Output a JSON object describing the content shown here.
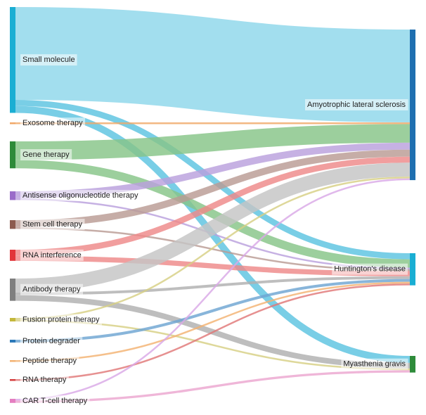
{
  "sources": [
    {
      "id": "small_molecule",
      "label": "Small molecule",
      "color": "#1aaed3"
    },
    {
      "id": "exosome",
      "label": "Exosome therapy",
      "color": "#f0a868"
    },
    {
      "id": "gene",
      "label": "Gene therapy",
      "color": "#2e8b3a"
    },
    {
      "id": "antisense",
      "label": "Antisense oligonucleotide therapy",
      "color": "#9a6cc9"
    },
    {
      "id": "stem_cell",
      "label": "Stem cell therapy",
      "color": "#8c5a4e"
    },
    {
      "id": "rnai",
      "label": "RNA interference",
      "color": "#e2353a"
    },
    {
      "id": "antibody",
      "label": "Antibody therapy",
      "color": "#7f7f7f"
    },
    {
      "id": "fusion",
      "label": "Fusion protein therapy",
      "color": "#c4b83b"
    },
    {
      "id": "degrader",
      "label": "Protein degrader",
      "color": "#2a78b8"
    },
    {
      "id": "peptide",
      "label": "Peptide therapy",
      "color": "#f3b272"
    },
    {
      "id": "rna",
      "label": "RNA therapy",
      "color": "#d53d3d"
    },
    {
      "id": "cart",
      "label": "CAR T-cell therapy",
      "color": "#e47ec0"
    }
  ],
  "targets": [
    {
      "id": "als",
      "label": "Amyotrophic lateral sclerosis",
      "color": "#1f6fb0"
    },
    {
      "id": "hd",
      "label": "Huntington's disease",
      "color": "#1aaed3"
    },
    {
      "id": "mg",
      "label": "Myasthenia gravis",
      "color": "#2e8b3a"
    }
  ],
  "flows": [
    {
      "source": "small_molecule",
      "target": "als",
      "value": 20,
      "color": "#8dd7ea"
    },
    {
      "source": "small_molecule",
      "target": "hd",
      "value": 1.3,
      "color": "#5cc3e0"
    },
    {
      "source": "small_molecule",
      "target": "mg",
      "value": 1.5,
      "color": "#5cc3e0"
    },
    {
      "source": "exosome",
      "target": "als",
      "value": 0.2,
      "color": "#f0a868"
    },
    {
      "source": "gene",
      "target": "als",
      "value": 4,
      "color": "#86c587"
    },
    {
      "source": "gene",
      "target": "hd",
      "value": 1.8,
      "color": "#86c587"
    },
    {
      "source": "antisense",
      "target": "als",
      "value": 1.5,
      "color": "#b9a0dd"
    },
    {
      "source": "antisense",
      "target": "hd",
      "value": 0.2,
      "color": "#b9a0dd"
    },
    {
      "source": "stem_cell",
      "target": "als",
      "value": 1.5,
      "color": "#b99b94"
    },
    {
      "source": "stem_cell",
      "target": "hd",
      "value": 0.3,
      "color": "#b99b94"
    },
    {
      "source": "rnai",
      "target": "als",
      "value": 1.3,
      "color": "#ee8989"
    },
    {
      "source": "rnai",
      "target": "hd",
      "value": 1.1,
      "color": "#ee8989"
    },
    {
      "source": "antibody",
      "target": "als",
      "value": 3,
      "color": "#c4c4c4"
    },
    {
      "source": "antibody",
      "target": "hd",
      "value": 0.6,
      "color": "#b0b0b0"
    },
    {
      "source": "antibody",
      "target": "mg",
      "value": 1.2,
      "color": "#b0b0b0"
    },
    {
      "source": "fusion",
      "target": "als",
      "value": 0.2,
      "color": "#d7cf84"
    },
    {
      "source": "fusion",
      "target": "mg",
      "value": 0.2,
      "color": "#d7cf84"
    },
    {
      "source": "degrader",
      "target": "hd",
      "value": 0.6,
      "color": "#6ea5d2"
    },
    {
      "source": "peptide",
      "target": "hd",
      "value": 0.15,
      "color": "#f3b272"
    },
    {
      "source": "rna",
      "target": "hd",
      "value": 0.2,
      "color": "#e07878"
    },
    {
      "source": "cart",
      "target": "als",
      "value": 0.1,
      "color": "#d9a8e6"
    },
    {
      "source": "cart",
      "target": "mg",
      "value": 0.5,
      "color": "#eba6d0"
    }
  ]
}
